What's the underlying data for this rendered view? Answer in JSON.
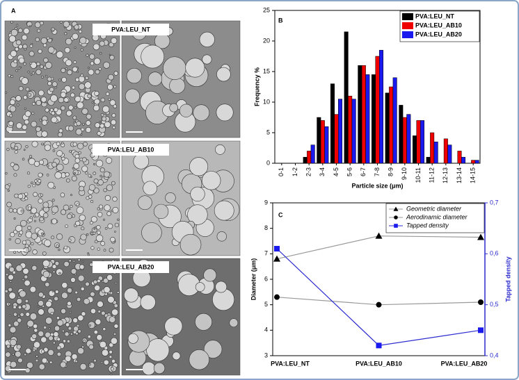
{
  "image_panel": {
    "label": "A",
    "images": [
      "PVA:LEU_NT",
      "PVA:LEU_AB10",
      "PVA:LEU_AB20"
    ]
  },
  "chart_data": [
    {
      "type": "bar",
      "label": "B",
      "xlabel": "Particle size (μm)",
      "ylabel": "Frequency %",
      "categories": [
        "0-1",
        "1-2",
        "2-3",
        "3-4",
        "4-5",
        "5-6",
        "6-7",
        "7-8",
        "8-9",
        "9-10",
        "10-11",
        "11-12",
        "12-13",
        "13-14",
        "14-15"
      ],
      "series": [
        {
          "name": "PVA:LEU_NT",
          "color": "#000000",
          "values": [
            0,
            0,
            1,
            7.5,
            13,
            21.5,
            16,
            14.5,
            11.5,
            9.5,
            4.5,
            1,
            0,
            0,
            0
          ]
        },
        {
          "name": "PVA:LEU_AB10",
          "color": "#ee0000",
          "values": [
            0,
            0,
            2,
            7,
            8,
            11,
            16,
            17.5,
            12.5,
            7.5,
            7,
            5,
            4,
            2,
            0.5
          ]
        },
        {
          "name": "PVA:LEU_AB20",
          "color": "#1a1aee",
          "values": [
            0,
            0,
            3,
            6,
            10.5,
            10.5,
            14.5,
            18.5,
            14,
            8,
            7,
            3.5,
            3,
            1,
            0.5
          ]
        }
      ],
      "ylim": [
        0,
        25
      ],
      "yticks": [
        0,
        5,
        10,
        15,
        20,
        25
      ],
      "legend": "upper right"
    },
    {
      "type": "line",
      "label": "C",
      "ylabel": "Diameter (μm)",
      "y2label": "Tapped density",
      "categories": [
        "PVA:LEU_NT",
        "PVA:LEU_AB10",
        "PVA:LEU_AB20"
      ],
      "series": [
        {
          "name": "Geometric diameter",
          "color": "#000000",
          "line_color": "#999999",
          "marker": "triangle",
          "values": [
            6.8,
            7.7,
            7.65
          ]
        },
        {
          "name": "Aerodinamic diameter",
          "color": "#000000",
          "line_color": "#999999",
          "marker": "circle",
          "values": [
            5.3,
            5.0,
            5.1
          ]
        },
        {
          "name": "Tapped density",
          "color": "#1a1aee",
          "line_color": "#2a2ad0",
          "marker": "square",
          "axis": "y2",
          "values": [
            0.61,
            0.42,
            0.45
          ]
        }
      ],
      "ylim": [
        3,
        9
      ],
      "yticks": [
        3,
        4,
        5,
        6,
        7,
        8,
        9
      ],
      "y2lim": [
        0.4,
        0.7
      ],
      "y2ticks": [
        {
          "value": 0.4,
          "label": "0,4"
        },
        {
          "value": 0.5,
          "label": "0,5"
        },
        {
          "value": 0.6,
          "label": "0,6"
        },
        {
          "value": 0.7,
          "label": "0,7"
        }
      ],
      "legend": "upper right"
    }
  ]
}
